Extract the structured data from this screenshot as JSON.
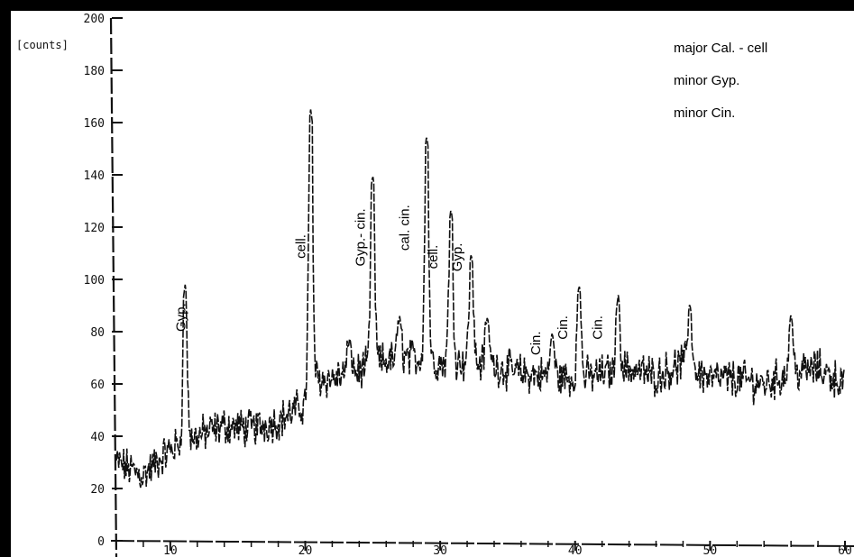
{
  "chart_data": {
    "type": "line",
    "title": "",
    "xlabel": "",
    "ylabel": "[counts]",
    "xlim": [
      6,
      60
    ],
    "ylim": [
      0,
      200
    ],
    "y_ticks": [
      0,
      20,
      40,
      60,
      80,
      100,
      120,
      140,
      160,
      180,
      200
    ],
    "y_tick_labels": [
      "0",
      "20",
      "40",
      "60",
      "80",
      "100",
      "120",
      "140",
      "160",
      "180",
      "200"
    ],
    "x_ticks": [
      10,
      20,
      30,
      40,
      50,
      60
    ],
    "x_tick_labels": [
      "10",
      "20",
      "30",
      "40",
      "50",
      "60"
    ],
    "grid": false,
    "series_color": "#111111",
    "baseline": [
      [
        6,
        30
      ],
      [
        8,
        25
      ],
      [
        10,
        35
      ],
      [
        12,
        40
      ],
      [
        14,
        44
      ],
      [
        16,
        43
      ],
      [
        18,
        46
      ],
      [
        20,
        52
      ],
      [
        20.4,
        62
      ],
      [
        22,
        62
      ],
      [
        24,
        65
      ],
      [
        26,
        69
      ],
      [
        28,
        70
      ],
      [
        30,
        68
      ],
      [
        32,
        69
      ],
      [
        34,
        67
      ],
      [
        36,
        64
      ],
      [
        38,
        63
      ],
      [
        40,
        62
      ],
      [
        42,
        64
      ],
      [
        44,
        66
      ],
      [
        46,
        63
      ],
      [
        48,
        68
      ],
      [
        50,
        62
      ],
      [
        52,
        62
      ],
      [
        54,
        60
      ],
      [
        56,
        64
      ],
      [
        58,
        66
      ],
      [
        60,
        60
      ]
    ],
    "peaks": [
      {
        "x": 11.1,
        "y": 98
      },
      {
        "x": 20.4,
        "y": 165
      },
      {
        "x": 23.3,
        "y": 78
      },
      {
        "x": 25.0,
        "y": 140
      },
      {
        "x": 27.0,
        "y": 86
      },
      {
        "x": 29.0,
        "y": 155
      },
      {
        "x": 30.8,
        "y": 127
      },
      {
        "x": 32.3,
        "y": 110
      },
      {
        "x": 33.5,
        "y": 86
      },
      {
        "x": 38.3,
        "y": 80
      },
      {
        "x": 40.3,
        "y": 98
      },
      {
        "x": 43.2,
        "y": 94
      },
      {
        "x": 48.5,
        "y": 91
      },
      {
        "x": 56.0,
        "y": 87
      }
    ],
    "noise_amplitude": 6,
    "annotations": [
      {
        "text": "Gyp.",
        "x": 11.1,
        "y": 80
      },
      {
        "text": "cell.",
        "x": 20.0,
        "y": 108
      },
      {
        "text": "Gyp.- cin.",
        "x": 24.4,
        "y": 105
      },
      {
        "text": "cal. cin.",
        "x": 27.7,
        "y": 111
      },
      {
        "text": "cell.",
        "x": 29.8,
        "y": 104
      },
      {
        "text": "Gyp.",
        "x": 31.6,
        "y": 103
      },
      {
        "text": "Cin.",
        "x": 37.4,
        "y": 71
      },
      {
        "text": "Cin.",
        "x": 39.4,
        "y": 77
      },
      {
        "text": "Cin.",
        "x": 42.0,
        "y": 77
      }
    ],
    "legend": {
      "placement": "top-right",
      "entries": [
        "major Cal. - cell",
        "minor Gyp.",
        "minor Cin."
      ]
    }
  }
}
